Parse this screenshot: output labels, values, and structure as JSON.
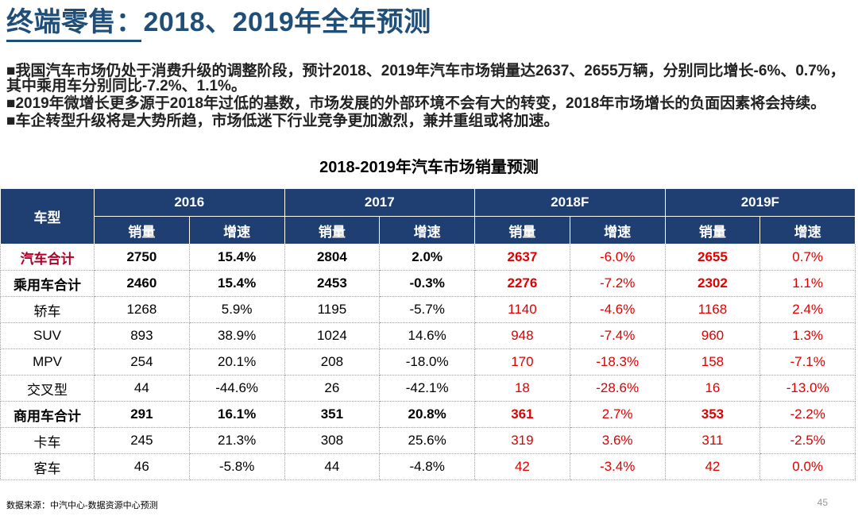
{
  "title": "终端零售：2018、2019年全年预测",
  "bullets": [
    {
      "mark": "■",
      "text": "我国汽车市场仍处于消费升级的调整阶段，预计2018、2019年汽车市场销量达2637、2655万辆，分别同比增长-6%、0.7%，其中乘用车分别同比-7.2%、1.1%。"
    },
    {
      "mark": "■",
      "text": "2019年微增长更多源于2018年过低的基数，市场发展的外部环境不会有大的转变，2018年市场增长的负面因素将会持续。"
    },
    {
      "mark": "■",
      "text": "车企转型升级将是大势所趋，市场低迷下行业竞争更加激烈，兼并重组或将加速。"
    }
  ],
  "table_title": "2018-2019年汽车市场销量预测",
  "table": {
    "header_type": "车型",
    "years": [
      "2016",
      "2017",
      "2018F",
      "2019F"
    ],
    "sub_sales": "销量",
    "sub_growth": "增速",
    "rows": [
      {
        "name": "汽车合计",
        "v": [
          "2750",
          "15.4%",
          "2804",
          "2.0%",
          "2637",
          "-6.0%",
          "2655",
          "0.7%"
        ]
      },
      {
        "name": "乘用车合计",
        "v": [
          "2460",
          "15.4%",
          "2453",
          "-0.3%",
          "2276",
          "-7.2%",
          "2302",
          "1.1%"
        ]
      },
      {
        "name": "轿车",
        "v": [
          "1268",
          "5.9%",
          "1195",
          "-5.7%",
          "1140",
          "-4.6%",
          "1168",
          "2.4%"
        ]
      },
      {
        "name": "SUV",
        "v": [
          "893",
          "38.9%",
          "1024",
          "14.6%",
          "948",
          "-7.4%",
          "960",
          "1.3%"
        ]
      },
      {
        "name": "MPV",
        "v": [
          "254",
          "20.1%",
          "208",
          "-18.0%",
          "170",
          "-18.3%",
          "158",
          "-7.1%"
        ]
      },
      {
        "name": "交叉型",
        "v": [
          "44",
          "-44.6%",
          "26",
          "-42.1%",
          "18",
          "-28.6%",
          "16",
          "-13.0%"
        ]
      },
      {
        "name": "商用车合计",
        "v": [
          "291",
          "16.1%",
          "351",
          "20.8%",
          "361",
          "2.7%",
          "353",
          "-2.2%"
        ]
      },
      {
        "name": "卡车",
        "v": [
          "245",
          "21.3%",
          "308",
          "25.6%",
          "319",
          "3.6%",
          "311",
          "-2.5%"
        ]
      },
      {
        "name": "客车",
        "v": [
          "46",
          "-5.8%",
          "44",
          "-4.8%",
          "42",
          "-3.4%",
          "42",
          "0.0%"
        ]
      }
    ]
  },
  "source": "数据来源：中汽中心-数据资源中心预测",
  "page_number": "45",
  "colors": {
    "header_bg": "#1f3f73",
    "title": "#1f4e79",
    "forecast": "#e00000",
    "total_label": "#b0002a"
  }
}
